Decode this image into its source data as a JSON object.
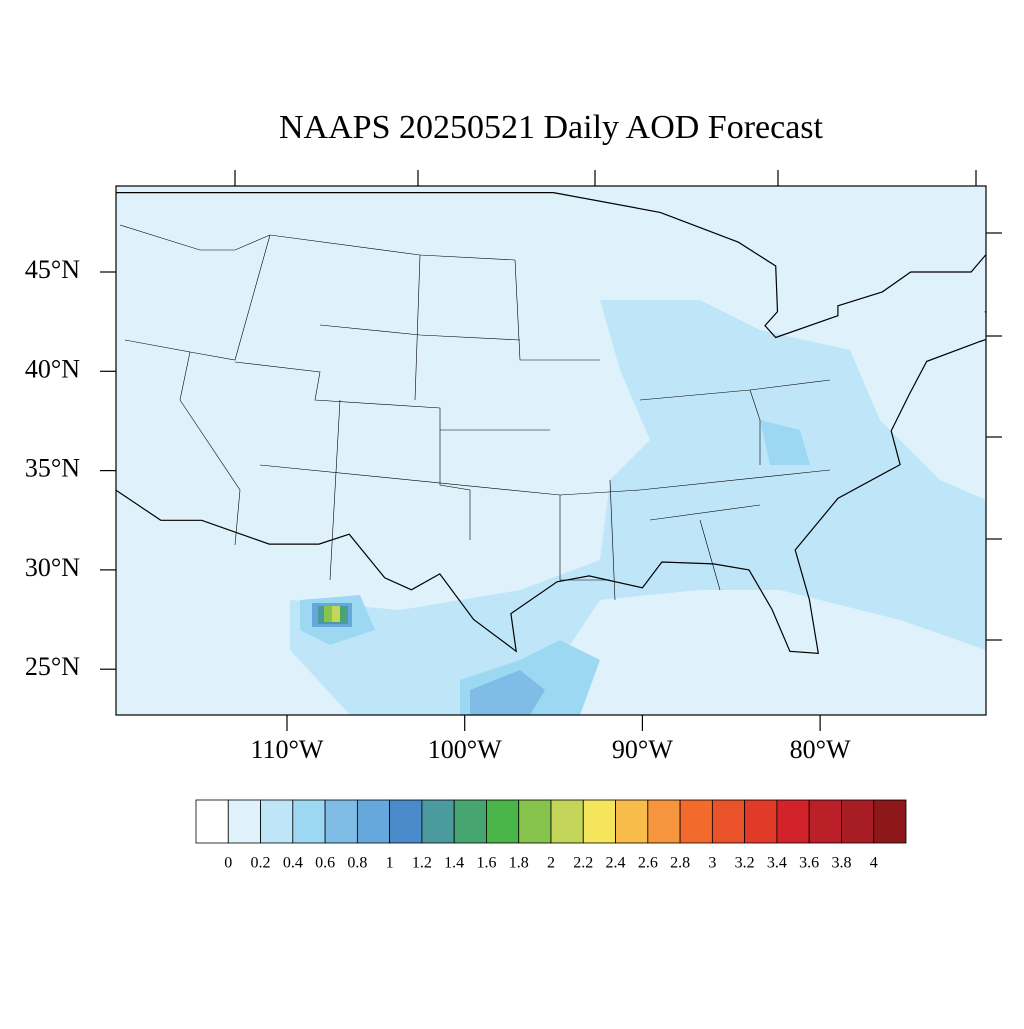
{
  "title": "NAAPS 20250521 Daily AOD Forecast",
  "lat_ticks": [
    {
      "value": 45,
      "label": "45°N"
    },
    {
      "value": 40,
      "label": "40°N"
    },
    {
      "value": 35,
      "label": "35°N"
    },
    {
      "value": 30,
      "label": "30°N"
    },
    {
      "value": 25,
      "label": "25°N"
    }
  ],
  "lon_ticks": [
    {
      "value": -110,
      "label": "110°W"
    },
    {
      "value": -100,
      "label": "100°W"
    },
    {
      "value": -90,
      "label": "90°W"
    },
    {
      "value": -80,
      "label": "80°W"
    }
  ],
  "colorbar": {
    "levels": [
      0,
      0.2,
      0.4,
      0.6,
      0.8,
      1,
      1.2,
      1.4,
      1.6,
      1.8,
      2,
      2.2,
      2.4,
      2.6,
      2.8,
      3,
      3.2,
      3.4,
      3.6,
      3.8,
      4
    ],
    "colors": [
      "#ffffff",
      "#dff2fb",
      "#bfe6f8",
      "#9dd8f3",
      "#7fbde6",
      "#67a8dc",
      "#4a8ccb",
      "#4a9a9e",
      "#47a570",
      "#4ab548",
      "#86c44e",
      "#c3d65a",
      "#f4e55c",
      "#f8bc4b",
      "#f6953d",
      "#f26b2d",
      "#ea5229",
      "#e13a28",
      "#d2232a",
      "#bb1f27",
      "#a81c23",
      "#8e1719"
    ]
  }
}
